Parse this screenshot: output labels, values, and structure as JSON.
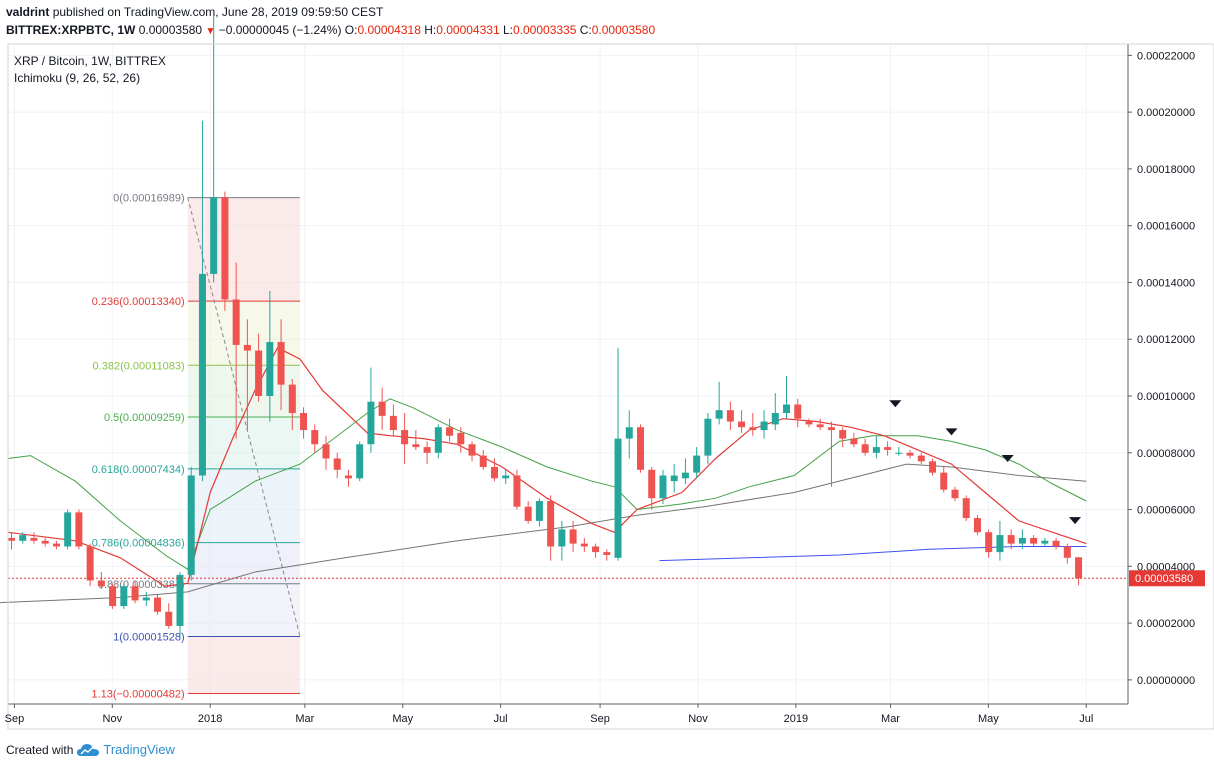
{
  "header": {
    "author": "valdrint",
    "published": "published on TradingView.com, June 28, 2019 09:59:50 CEST",
    "symbol": "BITTREX:XRPBTC, 1W",
    "last": "0.00003580",
    "change": "−0.00000045 (−1.24%)",
    "o_label": "O:",
    "o_value": "0.00004318",
    "h_label": "H:",
    "h_value": "0.00004331",
    "l_label": "L:",
    "l_value": "0.00003335",
    "c_label": "C:",
    "c_value": "0.00003580"
  },
  "legend": {
    "pair": "XRP / Bitcoin, 1W, BITTREX",
    "indicator": "Ichimoku (9, 26, 52, 26)"
  },
  "footer": {
    "created": "Created with",
    "brand": "TradingView"
  },
  "colors": {
    "up": "#26a69a",
    "down": "#ef5350",
    "grid": "#eef3f7",
    "conversion": "#e53935",
    "base": "#43a047",
    "long": "#757575",
    "blue": "#3f51f5",
    "price_line": "#e53935"
  },
  "chart_data": {
    "type": "candlestick",
    "title": "XRP / Bitcoin, 1W, BITTREX",
    "y_ticks": [
      0.00022,
      0.0002,
      0.00018,
      0.00016,
      0.00014,
      0.00012,
      0.0001,
      8e-05,
      6e-05,
      4e-05,
      2e-05,
      0.0
    ],
    "y_tick_labels": [
      "0.00022000",
      "0.00020000",
      "0.00018000",
      "0.00016000",
      "0.00014000",
      "0.00012000",
      "0.00010000",
      "0.00008000",
      "0.00006000",
      "0.00004000",
      "0.00002000",
      "0.00000000"
    ],
    "ylim": [
      -8.5e-06,
      0.000224
    ],
    "x_start": "2017-08-28",
    "x_end": "2019-07-27",
    "x_ticks": [
      {
        "date": "2017-09-01",
        "label": "Sep"
      },
      {
        "date": "2017-11-01",
        "label": "Nov"
      },
      {
        "date": "2018-01-01",
        "label": "2018"
      },
      {
        "date": "2018-03-01",
        "label": "Mar"
      },
      {
        "date": "2018-05-01",
        "label": "May"
      },
      {
        "date": "2018-07-01",
        "label": "Jul"
      },
      {
        "date": "2018-09-01",
        "label": "Sep"
      },
      {
        "date": "2018-11-01",
        "label": "Nov"
      },
      {
        "date": "2019-01-01",
        "label": "2019"
      },
      {
        "date": "2019-03-01",
        "label": "Mar"
      },
      {
        "date": "2019-05-01",
        "label": "May"
      },
      {
        "date": "2019-07-01",
        "label": "Jul"
      }
    ],
    "first_candle": "2017-08-28",
    "candles": [
      [
        5e-05,
        5.2e-05,
        4.6e-05,
        4.9e-05
      ],
      [
        4.9e-05,
        5.2e-05,
        4.8e-05,
        5.1e-05
      ],
      [
        5e-05,
        5.2e-05,
        4.8e-05,
        4.9e-05
      ],
      [
        4.9e-05,
        5e-05,
        4.7e-05,
        4.8e-05
      ],
      [
        4.8e-05,
        4.9e-05,
        4.6e-05,
        4.7e-05
      ],
      [
        4.7e-05,
        6e-05,
        4.6e-05,
        5.9e-05
      ],
      [
        5.9e-05,
        6e-05,
        4.6e-05,
        4.7e-05
      ],
      [
        4.7e-05,
        4.8e-05,
        3.3e-05,
        3.5e-05
      ],
      [
        3.5e-05,
        3.8e-05,
        3.2e-05,
        3.3e-05
      ],
      [
        3.3e-05,
        3.4e-05,
        2.5e-05,
        2.6e-05
      ],
      [
        2.6e-05,
        3.4e-05,
        2.5e-05,
        3.3e-05
      ],
      [
        3.3e-05,
        3.5e-05,
        2.7e-05,
        2.8e-05
      ],
      [
        2.8e-05,
        3.1e-05,
        2.6e-05,
        2.9e-05
      ],
      [
        2.9e-05,
        3e-05,
        2.3e-05,
        2.4e-05
      ],
      [
        2.4e-05,
        2.7e-05,
        1.8e-05,
        1.9e-05
      ],
      [
        1.9e-05,
        3.8e-05,
        1.5e-05,
        3.7e-05
      ],
      [
        3.7e-05,
        7.5e-05,
        3.5e-05,
        7.2e-05
      ],
      [
        7.2e-05,
        0.000197,
        7e-05,
        0.000143
      ],
      [
        0.000143,
        0.000234,
        0.00014,
        0.00017
      ],
      [
        0.00017,
        0.000172,
        0.00013,
        0.000134
      ],
      [
        0.000134,
        0.000147,
        8.5e-05,
        0.000118
      ],
      [
        0.000118,
        0.000127,
        8.8e-05,
        0.000116
      ],
      [
        0.000116,
        0.000122,
        9.8e-05,
        0.0001
      ],
      [
        0.0001,
        0.000137,
        9.1e-05,
        0.000119
      ],
      [
        0.000119,
        0.000127,
        9.5e-05,
        0.000104
      ],
      [
        0.000104,
        0.000106,
        8.8e-05,
        9.4e-05
      ],
      [
        9.4e-05,
        9.6e-05,
        8.5e-05,
        8.8e-05
      ],
      [
        8.8e-05,
        9e-05,
        8e-05,
        8.3e-05
      ],
      [
        8.3e-05,
        8.6e-05,
        7.4e-05,
        7.8e-05
      ],
      [
        7.8e-05,
        8e-05,
        7.1e-05,
        7.4e-05
      ],
      [
        7.2e-05,
        7.4e-05,
        6.8e-05,
        7.1e-05
      ],
      [
        7.1e-05,
        8.4e-05,
        7e-05,
        8.3e-05
      ],
      [
        8.3e-05,
        0.00011,
        8e-05,
        9.8e-05
      ],
      [
        9.8e-05,
        0.000103,
        8.8e-05,
        9.3e-05
      ],
      [
        9.3e-05,
        9.7e-05,
        8.6e-05,
        8.8e-05
      ],
      [
        8.8e-05,
        9.4e-05,
        7.6e-05,
        8.3e-05
      ],
      [
        8.3e-05,
        8.8e-05,
        8.1e-05,
        8.2e-05
      ],
      [
        8.2e-05,
        8.4e-05,
        7.6e-05,
        8e-05
      ],
      [
        8e-05,
        9e-05,
        7.8e-05,
        8.9e-05
      ],
      [
        8.9e-05,
        9.2e-05,
        8.4e-05,
        8.6e-05
      ],
      [
        8.7e-05,
        8.9e-05,
        8e-05,
        8.3e-05
      ],
      [
        8.3e-05,
        8.4e-05,
        7.7e-05,
        7.9e-05
      ],
      [
        7.9e-05,
        8.1e-05,
        7.4e-05,
        7.5e-05
      ],
      [
        7.5e-05,
        7.8e-05,
        7e-05,
        7.1e-05
      ],
      [
        7.1e-05,
        7.4e-05,
        6.9e-05,
        7.2e-05
      ],
      [
        7.2e-05,
        7.4e-05,
        6e-05,
        6.1e-05
      ],
      [
        6.1e-05,
        6.3e-05,
        5.5e-05,
        5.6e-05
      ],
      [
        5.6e-05,
        6.4e-05,
        5.4e-05,
        6.3e-05
      ],
      [
        6.3e-05,
        6.5e-05,
        4.2e-05,
        4.7e-05
      ],
      [
        4.7e-05,
        5.6e-05,
        4.2e-05,
        5.3e-05
      ],
      [
        5.3e-05,
        5.6e-05,
        4.5e-05,
        4.8e-05
      ],
      [
        4.8e-05,
        5e-05,
        4.5e-05,
        4.7e-05
      ],
      [
        4.7e-05,
        4.8e-05,
        4.3e-05,
        4.5e-05
      ],
      [
        4.5e-05,
        4.6e-05,
        4.2e-05,
        4.4e-05
      ],
      [
        4.3e-05,
        0.000117,
        4.2e-05,
        8.5e-05
      ],
      [
        8.5e-05,
        9.5e-05,
        7.8e-05,
        8.9e-05
      ],
      [
        8.9e-05,
        9e-05,
        7.3e-05,
        7.4e-05
      ],
      [
        7.4e-05,
        7.5e-05,
        6e-05,
        6.4e-05
      ],
      [
        6.4e-05,
        7.4e-05,
        6.2e-05,
        7.2e-05
      ],
      [
        7e-05,
        7.6e-05,
        6.6e-05,
        7.2e-05
      ],
      [
        7.1e-05,
        7.8e-05,
        6.9e-05,
        7.3e-05
      ],
      [
        7.3e-05,
        8.2e-05,
        7.1e-05,
        7.9e-05
      ],
      [
        7.9e-05,
        9.4e-05,
        7.6e-05,
        9.2e-05
      ],
      [
        9.2e-05,
        0.000105,
        9e-05,
        9.5e-05
      ],
      [
        9.5e-05,
        9.8e-05,
        8.8e-05,
        9.1e-05
      ],
      [
        9.1e-05,
        9.5e-05,
        8.7e-05,
        8.9e-05
      ],
      [
        8.9e-05,
        9.4e-05,
        8.6e-05,
        8.8e-05
      ],
      [
        8.8e-05,
        9.5e-05,
        8.5e-05,
        9.1e-05
      ],
      [
        9e-05,
        0.000101,
        8.8e-05,
        9.4e-05
      ],
      [
        9.4e-05,
        0.000107,
        9.2e-05,
        9.7e-05
      ],
      [
        9.7e-05,
        9.9e-05,
        8.9e-05,
        9.2e-05
      ],
      [
        9.1e-05,
        9.2e-05,
        8.9e-05,
        9e-05
      ],
      [
        9e-05,
        9.2e-05,
        8.8e-05,
        8.9e-05
      ],
      [
        8.9e-05,
        9.1e-05,
        6.8e-05,
        8.8e-05
      ],
      [
        8.8e-05,
        8.9e-05,
        8.2e-05,
        8.5e-05
      ],
      [
        8.5e-05,
        8.7e-05,
        8.2e-05,
        8.3e-05
      ],
      [
        8.3e-05,
        8.5e-05,
        7.9e-05,
        8e-05
      ],
      [
        8e-05,
        8.6e-05,
        7.8e-05,
        8.2e-05
      ],
      [
        8.2e-05,
        8.4e-05,
        7.9e-05,
        8.1e-05
      ],
      [
        8e-05,
        8.2e-05,
        7.9e-05,
        8e-05
      ],
      [
        8e-05,
        8.1e-05,
        7.8e-05,
        7.9e-05
      ],
      [
        7.9e-05,
        8e-05,
        7.6e-05,
        7.7e-05
      ],
      [
        7.7e-05,
        7.8e-05,
        7.2e-05,
        7.3e-05
      ],
      [
        7.3e-05,
        7.5e-05,
        6.6e-05,
        6.7e-05
      ],
      [
        6.7e-05,
        6.8e-05,
        6.3e-05,
        6.4e-05
      ],
      [
        6.4e-05,
        6.5e-05,
        5.6e-05,
        5.7e-05
      ],
      [
        5.7e-05,
        5.8e-05,
        5.1e-05,
        5.2e-05
      ],
      [
        5.2e-05,
        5.3e-05,
        4.3e-05,
        4.5e-05
      ],
      [
        4.5e-05,
        5.6e-05,
        4.2e-05,
        5.1e-05
      ],
      [
        5.1e-05,
        5.3e-05,
        4.6e-05,
        4.8e-05
      ],
      [
        4.8e-05,
        5.3e-05,
        4.6e-05,
        5e-05
      ],
      [
        5e-05,
        5.1e-05,
        4.7e-05,
        4.8e-05
      ],
      [
        4.8e-05,
        5e-05,
        4.7e-05,
        4.9e-05
      ],
      [
        4.9e-05,
        5e-05,
        4.6e-05,
        4.7e-05
      ],
      [
        4.7e-05,
        4.8e-05,
        4.1e-05,
        4.3e-05
      ],
      [
        4.318e-05,
        4.331e-05,
        3.335e-05,
        3.58e-05
      ]
    ],
    "ichimoku": {
      "conversion_line": [
        [
          0,
          5.2e-05
        ],
        [
          6,
          4.9e-05
        ],
        [
          10,
          4.3e-05
        ],
        [
          14,
          3.3e-05
        ],
        [
          16,
          3.4e-05
        ],
        [
          18,
          6.6e-05
        ],
        [
          20,
          8.5e-05
        ],
        [
          22,
          0.000102
        ],
        [
          24,
          0.000117
        ],
        [
          26,
          0.000113
        ],
        [
          28,
          0.000102
        ],
        [
          32,
          8.7e-05
        ],
        [
          34,
          8.6e-05
        ],
        [
          37,
          8.5e-05
        ],
        [
          40,
          8.3e-05
        ],
        [
          44,
          7.5e-05
        ],
        [
          48,
          6.4e-05
        ],
        [
          52,
          5.5e-05
        ],
        [
          54,
          5.2e-05
        ],
        [
          56,
          6e-05
        ],
        [
          60,
          6.6e-05
        ],
        [
          63,
          7.8e-05
        ],
        [
          66,
          8.8e-05
        ],
        [
          69,
          9.2e-05
        ],
        [
          72,
          9.1e-05
        ],
        [
          75,
          8.9e-05
        ],
        [
          78,
          8.6e-05
        ],
        [
          81,
          8.1e-05
        ],
        [
          84,
          7.6e-05
        ],
        [
          87,
          6.6e-05
        ],
        [
          90,
          5.6e-05
        ],
        [
          93,
          5.2e-05
        ],
        [
          96,
          4.8e-05
        ]
      ],
      "base_line": [
        [
          0,
          7.8e-05
        ],
        [
          2,
          7.9e-05
        ],
        [
          6,
          7e-05
        ],
        [
          10,
          5.6e-05
        ],
        [
          14,
          4.4e-05
        ],
        [
          16,
          3.9e-05
        ],
        [
          18,
          6e-05
        ],
        [
          22,
          7e-05
        ],
        [
          26,
          7.6e-05
        ],
        [
          30,
          8.8e-05
        ],
        [
          32,
          9.4e-05
        ],
        [
          34,
          9.9e-05
        ],
        [
          36,
          9.6e-05
        ],
        [
          40,
          8.8e-05
        ],
        [
          44,
          8.2e-05
        ],
        [
          48,
          7.5e-05
        ],
        [
          52,
          7e-05
        ],
        [
          54,
          6.8e-05
        ],
        [
          56,
          6e-05
        ],
        [
          60,
          6.2e-05
        ],
        [
          63,
          6.4e-05
        ],
        [
          66,
          6.8e-05
        ],
        [
          70,
          7.2e-05
        ],
        [
          74,
          8.4e-05
        ],
        [
          77,
          8.6e-05
        ],
        [
          81,
          8.6e-05
        ],
        [
          84,
          8.4e-05
        ],
        [
          87,
          8.1e-05
        ],
        [
          90,
          7.6e-05
        ],
        [
          93,
          6.9e-05
        ],
        [
          96,
          6.3e-05
        ]
      ],
      "long_line": [
        [
          -2,
          2.7e-05
        ],
        [
          10,
          2.9e-05
        ],
        [
          16,
          3.1e-05
        ],
        [
          22,
          3.8e-05
        ],
        [
          30,
          4.3e-05
        ],
        [
          40,
          4.9e-05
        ],
        [
          50,
          5.4e-05
        ],
        [
          56,
          5.8e-05
        ],
        [
          62,
          6.1e-05
        ],
        [
          70,
          6.6e-05
        ],
        [
          76,
          7.2e-05
        ],
        [
          80,
          7.6e-05
        ],
        [
          84,
          7.5e-05
        ],
        [
          90,
          7.2e-05
        ],
        [
          96,
          7e-05
        ]
      ],
      "blue_line": [
        [
          58,
          4.2e-05
        ],
        [
          66,
          4.3e-05
        ],
        [
          74,
          4.4e-05
        ],
        [
          82,
          4.6e-05
        ],
        [
          90,
          4.7e-05
        ],
        [
          96,
          4.7e-05
        ]
      ]
    },
    "fibonacci": {
      "levels": [
        {
          "ratio": "0",
          "value": 0.00016989,
          "label": "0(0.00016989)",
          "color": "#787b86"
        },
        {
          "ratio": "0.236",
          "value": 0.0001334,
          "label": "0.236(0.00013340)",
          "color": "#e53935"
        },
        {
          "ratio": "0.382",
          "value": 0.00011083,
          "label": "0.382(0.00011083)",
          "color": "#8bc34a"
        },
        {
          "ratio": "0.5",
          "value": 9.259e-05,
          "label": "0.5(0.00009259)",
          "color": "#4caf50"
        },
        {
          "ratio": "0.618",
          "value": 7.434e-05,
          "label": "0.618(0.00007434)",
          "color": "#26a69a"
        },
        {
          "ratio": "0.786",
          "value": 4.836e-05,
          "label": "0.786(0.00004836)",
          "color": "#26a69a"
        },
        {
          "ratio": "0.88",
          "value": 3.384e-05,
          "label": "0.88(0.00003384)",
          "color": "#787b86"
        },
        {
          "ratio": "1",
          "value": 1.528e-05,
          "label": "1(0.00001528)",
          "color": "#3f51b5"
        },
        {
          "ratio": "1.13",
          "value": -4.82e-06,
          "label": "1.13(−0.00000482)",
          "color": "#e53935"
        }
      ],
      "from_date": "2017-12-18",
      "to_date": "2018-02-26"
    },
    "last_price": {
      "value": 3.58e-05,
      "label": "0.00003580"
    },
    "markers": [
      {
        "date": "2019-03-04",
        "value": 9.71e-05
      },
      {
        "date": "2019-04-08",
        "value": 8.72e-05
      },
      {
        "date": "2019-05-13",
        "value": 7.78e-05
      },
      {
        "date": "2019-06-24",
        "value": 5.59e-05
      }
    ]
  }
}
